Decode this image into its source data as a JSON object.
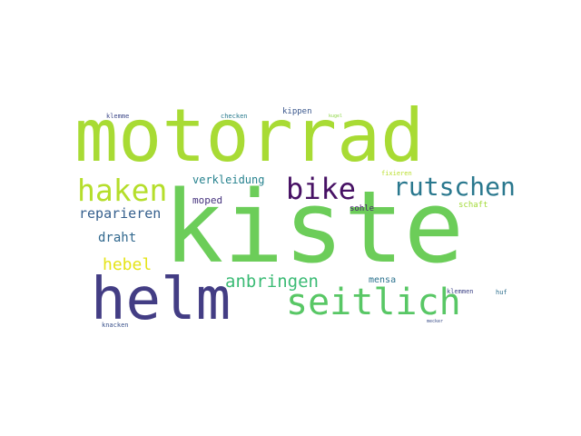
{
  "word_cloud": {
    "words": [
      {
        "text": "kiste",
        "color": "#6ccd59"
      },
      {
        "text": "motorrad",
        "color": "#a8db34"
      },
      {
        "text": "helm",
        "color": "#433d84"
      },
      {
        "text": "seitlich",
        "color": "#58c765"
      },
      {
        "text": "haken",
        "color": "#b5de2b"
      },
      {
        "text": "bike",
        "color": "#471164"
      },
      {
        "text": "rutschen",
        "color": "#2a788e"
      },
      {
        "text": "anbringen",
        "color": "#3bbb75"
      },
      {
        "text": "reparieren",
        "color": "#355f8d"
      },
      {
        "text": "hebel",
        "color": "#e5e419"
      },
      {
        "text": "draht",
        "color": "#31688e"
      },
      {
        "text": "verkleidung",
        "color": "#26828e"
      },
      {
        "text": "moped",
        "color": "#46337e"
      },
      {
        "text": "sohle",
        "color": "#481f70"
      },
      {
        "text": "mensa",
        "color": "#2c728e"
      },
      {
        "text": "schaft",
        "color": "#a2da37"
      },
      {
        "text": "fixieren",
        "color": "#b8de29"
      },
      {
        "text": "kippen",
        "color": "#39568c"
      },
      {
        "text": "klemme",
        "color": "#3e4989"
      },
      {
        "text": "checken",
        "color": "#297b8e"
      },
      {
        "text": "kugel",
        "color": "#8ed645"
      },
      {
        "text": "klemmen",
        "color": "#404588"
      },
      {
        "text": "huf",
        "color": "#2e6f8e"
      },
      {
        "text": "knacken",
        "color": "#3b528b"
      },
      {
        "text": "mecker",
        "color": "#3c4f8a"
      }
    ]
  }
}
